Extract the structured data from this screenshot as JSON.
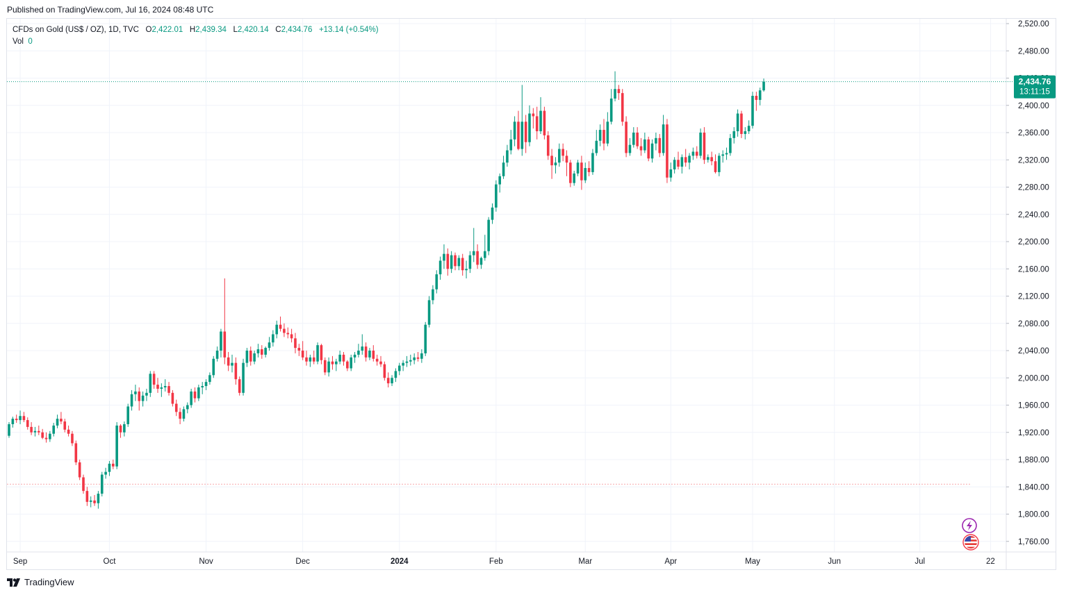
{
  "published": "Published on TradingView.com, Jul 16, 2024 08:48 UTC",
  "legend": {
    "symbol": "CFDs on Gold (US$ / OZ), 1D, TVC",
    "open_label": "O",
    "open": "2,422.01",
    "high_label": "H",
    "high": "2,439.34",
    "low_label": "L",
    "low": "2,420.14",
    "close_label": "C",
    "close": "2,434.76",
    "change": "+13.14 (+0.54%)",
    "vol_label": "Vol",
    "vol": "0"
  },
  "last_price": {
    "price": "2,434.76",
    "countdown": "13:11:15"
  },
  "brand": "TradingView",
  "colors": {
    "up": "#089981",
    "down": "#f23645",
    "grid": "#f0f3fa",
    "text": "#131722"
  },
  "chart_data": {
    "type": "candlestick",
    "y_axis": {
      "min": 1745,
      "max": 2530,
      "ticks": [
        2520,
        2480,
        2440,
        2400,
        2360,
        2320,
        2280,
        2240,
        2200,
        2160,
        2120,
        2080,
        2040,
        2000,
        1960,
        1920,
        1880,
        1840,
        1800,
        1760
      ],
      "tick_labels": [
        "2,520.00",
        "2,480.00",
        "2,440.00",
        "2,400.00",
        "2,360.00",
        "2,320.00",
        "2,280.00",
        "2,240.00",
        "2,200.00",
        "2,160.00",
        "2,120.00",
        "2,080.00",
        "2,040.00",
        "2,000.00",
        "1,960.00",
        "1,920.00",
        "1,880.00",
        "1,840.00",
        "1,800.00",
        "1,760.00"
      ]
    },
    "x_axis": {
      "labels": [
        "Sep",
        "Oct",
        "Nov",
        "Dec",
        "2024",
        "Feb",
        "Mar",
        "Apr",
        "May",
        "Jun",
        "Jul",
        "22"
      ],
      "label_bar_index": [
        3,
        27,
        53,
        79,
        105,
        131,
        155,
        178,
        200,
        222,
        245,
        264
      ]
    },
    "reference_line": 1844,
    "last_close": 2434.76,
    "candles": [
      [
        1915,
        1935,
        1912,
        1932
      ],
      [
        1932,
        1943,
        1927,
        1940
      ],
      [
        1940,
        1946,
        1934,
        1938
      ],
      [
        1938,
        1952,
        1932,
        1944
      ],
      [
        1944,
        1950,
        1935,
        1938
      ],
      [
        1938,
        1942,
        1924,
        1928
      ],
      [
        1928,
        1935,
        1916,
        1920
      ],
      [
        1920,
        1928,
        1914,
        1922
      ],
      [
        1922,
        1930,
        1916,
        1920
      ],
      [
        1920,
        1925,
        1910,
        1912
      ],
      [
        1912,
        1920,
        1905,
        1910
      ],
      [
        1910,
        1922,
        1906,
        1918
      ],
      [
        1918,
        1934,
        1914,
        1930
      ],
      [
        1930,
        1946,
        1926,
        1940
      ],
      [
        1940,
        1950,
        1932,
        1936
      ],
      [
        1936,
        1940,
        1920,
        1924
      ],
      [
        1924,
        1930,
        1914,
        1918
      ],
      [
        1918,
        1922,
        1900,
        1904
      ],
      [
        1904,
        1908,
        1872,
        1876
      ],
      [
        1876,
        1880,
        1850,
        1854
      ],
      [
        1854,
        1858,
        1830,
        1834
      ],
      [
        1834,
        1840,
        1812,
        1818
      ],
      [
        1818,
        1826,
        1810,
        1820
      ],
      [
        1820,
        1828,
        1812,
        1816
      ],
      [
        1816,
        1834,
        1808,
        1830
      ],
      [
        1830,
        1862,
        1826,
        1858
      ],
      [
        1858,
        1868,
        1852,
        1862
      ],
      [
        1862,
        1878,
        1856,
        1874
      ],
      [
        1874,
        1880,
        1866,
        1870
      ],
      [
        1870,
        1935,
        1866,
        1930
      ],
      [
        1930,
        1932,
        1912,
        1920
      ],
      [
        1920,
        1936,
        1914,
        1932
      ],
      [
        1932,
        1962,
        1928,
        1958
      ],
      [
        1958,
        1982,
        1952,
        1976
      ],
      [
        1976,
        1990,
        1966,
        1980
      ],
      [
        1980,
        1986,
        1952,
        1966
      ],
      [
        1966,
        1980,
        1958,
        1974
      ],
      [
        1974,
        1984,
        1966,
        1978
      ],
      [
        1978,
        2010,
        1972,
        2006
      ],
      [
        2006,
        2010,
        1984,
        1990
      ],
      [
        1990,
        2000,
        1978,
        1984
      ],
      [
        1984,
        1992,
        1972,
        1986
      ],
      [
        1986,
        1998,
        1980,
        1988
      ],
      [
        1988,
        1994,
        1974,
        1978
      ],
      [
        1978,
        1982,
        1958,
        1962
      ],
      [
        1962,
        1968,
        1944,
        1950
      ],
      [
        1950,
        1956,
        1932,
        1940
      ],
      [
        1940,
        1958,
        1936,
        1954
      ],
      [
        1954,
        1964,
        1948,
        1960
      ],
      [
        1960,
        1984,
        1956,
        1980
      ],
      [
        1980,
        1986,
        1964,
        1970
      ],
      [
        1970,
        1990,
        1966,
        1986
      ],
      [
        1986,
        1994,
        1976,
        1988
      ],
      [
        1988,
        1998,
        1982,
        1994
      ],
      [
        1994,
        2008,
        1990,
        2004
      ],
      [
        2004,
        2032,
        2000,
        2028
      ],
      [
        2028,
        2046,
        2024,
        2040
      ],
      [
        2040,
        2072,
        2030,
        2068
      ],
      [
        2068,
        2146,
        2020,
        2030
      ],
      [
        2030,
        2038,
        2010,
        2018
      ],
      [
        2018,
        2034,
        2008,
        2022
      ],
      [
        2022,
        2030,
        1990,
        1998
      ],
      [
        1998,
        2002,
        1974,
        1978
      ],
      [
        1978,
        2028,
        1974,
        2022
      ],
      [
        2022,
        2044,
        2016,
        2040
      ],
      [
        2040,
        2046,
        2018,
        2024
      ],
      [
        2024,
        2040,
        2020,
        2036
      ],
      [
        2036,
        2050,
        2030,
        2042
      ],
      [
        2042,
        2048,
        2028,
        2034
      ],
      [
        2034,
        2046,
        2030,
        2044
      ],
      [
        2044,
        2060,
        2040,
        2052
      ],
      [
        2052,
        2070,
        2046,
        2064
      ],
      [
        2064,
        2084,
        2058,
        2078
      ],
      [
        2078,
        2090,
        2068,
        2072
      ],
      [
        2072,
        2080,
        2060,
        2066
      ],
      [
        2066,
        2074,
        2058,
        2064
      ],
      [
        2064,
        2072,
        2052,
        2058
      ],
      [
        2058,
        2066,
        2036,
        2044
      ],
      [
        2044,
        2050,
        2032,
        2040
      ],
      [
        2040,
        2054,
        2026,
        2030
      ],
      [
        2030,
        2040,
        2018,
        2024
      ],
      [
        2024,
        2034,
        2016,
        2030
      ],
      [
        2030,
        2040,
        2020,
        2024
      ],
      [
        2024,
        2052,
        2020,
        2048
      ],
      [
        2048,
        2050,
        2020,
        2026
      ],
      [
        2026,
        2030,
        2004,
        2008
      ],
      [
        2008,
        2030,
        2002,
        2024
      ],
      [
        2024,
        2032,
        2012,
        2020
      ],
      [
        2020,
        2028,
        2010,
        2024
      ],
      [
        2024,
        2040,
        2020,
        2034
      ],
      [
        2034,
        2038,
        2018,
        2024
      ],
      [
        2024,
        2026,
        2010,
        2014
      ],
      [
        2014,
        2034,
        2010,
        2030
      ],
      [
        2030,
        2038,
        2022,
        2034
      ],
      [
        2034,
        2050,
        2030,
        2040
      ],
      [
        2040,
        2064,
        2034,
        2046
      ],
      [
        2046,
        2052,
        2024,
        2030
      ],
      [
        2030,
        2044,
        2026,
        2040
      ],
      [
        2040,
        2048,
        2024,
        2028
      ],
      [
        2028,
        2034,
        2018,
        2024
      ],
      [
        2024,
        2032,
        2016,
        2020
      ],
      [
        2020,
        2024,
        1996,
        2000
      ],
      [
        2000,
        2008,
        1986,
        1992
      ],
      [
        1992,
        2004,
        1988,
        2000
      ],
      [
        2000,
        2014,
        1994,
        2010
      ],
      [
        2010,
        2022,
        2004,
        2018
      ],
      [
        2018,
        2026,
        2010,
        2022
      ],
      [
        2022,
        2032,
        2016,
        2024
      ],
      [
        2024,
        2034,
        2018,
        2026
      ],
      [
        2026,
        2036,
        2020,
        2030
      ],
      [
        2030,
        2038,
        2024,
        2028
      ],
      [
        2028,
        2042,
        2022,
        2036
      ],
      [
        2036,
        2082,
        2032,
        2078
      ],
      [
        2078,
        2120,
        2074,
        2114
      ],
      [
        2114,
        2136,
        2108,
        2130
      ],
      [
        2130,
        2158,
        2124,
        2152
      ],
      [
        2152,
        2178,
        2144,
        2172
      ],
      [
        2172,
        2196,
        2160,
        2182
      ],
      [
        2182,
        2190,
        2150,
        2160
      ],
      [
        2160,
        2186,
        2154,
        2180
      ],
      [
        2180,
        2184,
        2158,
        2164
      ],
      [
        2164,
        2180,
        2158,
        2176
      ],
      [
        2176,
        2182,
        2150,
        2158
      ],
      [
        2158,
        2172,
        2146,
        2160
      ],
      [
        2160,
        2186,
        2154,
        2180
      ],
      [
        2180,
        2220,
        2170,
        2186
      ],
      [
        2186,
        2196,
        2160,
        2166
      ],
      [
        2166,
        2178,
        2160,
        2176
      ],
      [
        2176,
        2210,
        2172,
        2186
      ],
      [
        2186,
        2236,
        2180,
        2232
      ],
      [
        2232,
        2256,
        2226,
        2250
      ],
      [
        2250,
        2290,
        2244,
        2284
      ],
      [
        2284,
        2300,
        2272,
        2296
      ],
      [
        2296,
        2326,
        2292,
        2316
      ],
      [
        2316,
        2342,
        2310,
        2334
      ],
      [
        2334,
        2364,
        2328,
        2350
      ],
      [
        2350,
        2384,
        2340,
        2376
      ],
      [
        2376,
        2392,
        2334,
        2336
      ],
      [
        2336,
        2430,
        2326,
        2376
      ],
      [
        2376,
        2386,
        2330,
        2346
      ],
      [
        2346,
        2400,
        2340,
        2388
      ],
      [
        2388,
        2396,
        2366,
        2384
      ],
      [
        2384,
        2398,
        2350,
        2362
      ],
      [
        2362,
        2412,
        2358,
        2392
      ],
      [
        2392,
        2398,
        2350,
        2356
      ],
      [
        2356,
        2362,
        2320,
        2326
      ],
      [
        2326,
        2336,
        2292,
        2312
      ],
      [
        2312,
        2324,
        2300,
        2316
      ],
      [
        2316,
        2344,
        2310,
        2336
      ],
      [
        2336,
        2344,
        2318,
        2326
      ],
      [
        2326,
        2334,
        2296,
        2316
      ],
      [
        2316,
        2320,
        2280,
        2286
      ],
      [
        2286,
        2304,
        2282,
        2300
      ],
      [
        2300,
        2320,
        2296,
        2316
      ],
      [
        2316,
        2326,
        2276,
        2290
      ],
      [
        2290,
        2316,
        2286,
        2308
      ],
      [
        2308,
        2318,
        2296,
        2302
      ],
      [
        2302,
        2336,
        2298,
        2330
      ],
      [
        2330,
        2364,
        2326,
        2348
      ],
      [
        2348,
        2372,
        2340,
        2364
      ],
      [
        2364,
        2380,
        2334,
        2344
      ],
      [
        2344,
        2390,
        2340,
        2376
      ],
      [
        2376,
        2424,
        2372,
        2410
      ],
      [
        2410,
        2450,
        2406,
        2424
      ],
      [
        2424,
        2430,
        2408,
        2418
      ],
      [
        2418,
        2424,
        2370,
        2376
      ],
      [
        2376,
        2384,
        2324,
        2330
      ],
      [
        2330,
        2352,
        2326,
        2342
      ],
      [
        2342,
        2368,
        2338,
        2360
      ],
      [
        2360,
        2368,
        2336,
        2340
      ],
      [
        2340,
        2352,
        2326,
        2334
      ],
      [
        2334,
        2360,
        2330,
        2350
      ],
      [
        2350,
        2354,
        2318,
        2322
      ],
      [
        2322,
        2350,
        2316,
        2344
      ],
      [
        2344,
        2360,
        2334,
        2352
      ],
      [
        2352,
        2358,
        2324,
        2330
      ],
      [
        2330,
        2386,
        2326,
        2372
      ],
      [
        2372,
        2380,
        2286,
        2294
      ],
      [
        2294,
        2316,
        2288,
        2306
      ],
      [
        2306,
        2324,
        2300,
        2320
      ],
      [
        2320,
        2332,
        2306,
        2310
      ],
      [
        2310,
        2328,
        2300,
        2324
      ],
      [
        2324,
        2336,
        2310,
        2316
      ],
      [
        2316,
        2330,
        2306,
        2326
      ],
      [
        2326,
        2338,
        2320,
        2332
      ],
      [
        2332,
        2340,
        2322,
        2326
      ],
      [
        2326,
        2366,
        2322,
        2360
      ],
      [
        2360,
        2368,
        2314,
        2320
      ],
      [
        2320,
        2328,
        2316,
        2324
      ],
      [
        2324,
        2332,
        2312,
        2318
      ],
      [
        2318,
        2328,
        2300,
        2302
      ],
      [
        2302,
        2330,
        2296,
        2326
      ],
      [
        2326,
        2334,
        2316,
        2328
      ],
      [
        2328,
        2338,
        2320,
        2330
      ],
      [
        2330,
        2358,
        2326,
        2352
      ],
      [
        2352,
        2368,
        2344,
        2362
      ],
      [
        2362,
        2394,
        2354,
        2388
      ],
      [
        2388,
        2392,
        2352,
        2358
      ],
      [
        2358,
        2368,
        2350,
        2362
      ],
      [
        2362,
        2378,
        2358,
        2370
      ],
      [
        2370,
        2420,
        2366,
        2414
      ],
      [
        2414,
        2420,
        2392,
        2408
      ],
      [
        2408,
        2426,
        2400,
        2422
      ],
      [
        2422.01,
        2439.34,
        2420.14,
        2434.76
      ]
    ]
  }
}
